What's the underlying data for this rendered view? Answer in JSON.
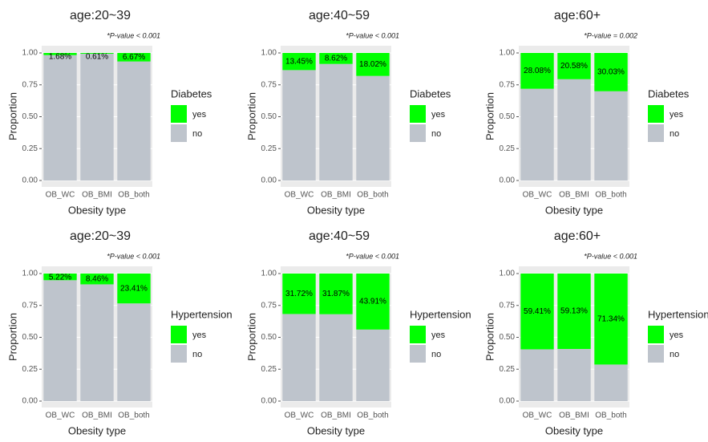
{
  "chart_data": [
    {
      "type": "stacked_bar",
      "title": "age:20~39",
      "subtitle": "*P-value < 0.001",
      "x_label": "Obesity type",
      "y_label": "Proportion",
      "legend_title": "Diabetes",
      "categories": [
        "OB_WC",
        "OB_BMI",
        "OB_both"
      ],
      "series": [
        {
          "name": "yes",
          "color": "#00ff00",
          "values": [
            0.0168,
            0.0061,
            0.0667
          ],
          "value_labels": [
            "1.68%",
            "0.61%",
            "6.67%"
          ]
        },
        {
          "name": "no",
          "color": "#bec4cc",
          "values": [
            0.9832,
            0.9939,
            0.9333
          ]
        }
      ],
      "ylim": [
        0,
        1
      ],
      "yticks": [
        {
          "value": 0,
          "label": "0.00"
        },
        {
          "value": 0.25,
          "label": "0.25"
        },
        {
          "value": 0.5,
          "label": "0.50"
        },
        {
          "value": 0.75,
          "label": "0.75"
        },
        {
          "value": 1,
          "label": "1.00"
        }
      ],
      "grid": true
    },
    {
      "type": "stacked_bar",
      "title": "age:40~59",
      "subtitle": "*P-value < 0.001",
      "x_label": "Obesity type",
      "y_label": "Proportion",
      "legend_title": "Diabetes",
      "categories": [
        "OB_WC",
        "OB_BMI",
        "OB_both"
      ],
      "series": [
        {
          "name": "yes",
          "color": "#00ff00",
          "values": [
            0.1345,
            0.0862,
            0.1802
          ],
          "value_labels": [
            "13.45%",
            "8.62%",
            "18.02%"
          ]
        },
        {
          "name": "no",
          "color": "#bec4cc",
          "values": [
            0.8655,
            0.9138,
            0.8198
          ]
        }
      ],
      "ylim": [
        0,
        1
      ],
      "yticks": [
        {
          "value": 0,
          "label": "0.00"
        },
        {
          "value": 0.25,
          "label": "0.25"
        },
        {
          "value": 0.5,
          "label": "0.50"
        },
        {
          "value": 0.75,
          "label": "0.75"
        },
        {
          "value": 1,
          "label": "1.00"
        }
      ],
      "grid": true
    },
    {
      "type": "stacked_bar",
      "title": "age:60+",
      "subtitle": "*P-value = 0.002",
      "x_label": "Obesity type",
      "y_label": "Proportion",
      "legend_title": "Diabetes",
      "categories": [
        "OB_WC",
        "OB_BMI",
        "OB_both"
      ],
      "series": [
        {
          "name": "yes",
          "color": "#00ff00",
          "values": [
            0.2808,
            0.2058,
            0.3003
          ],
          "value_labels": [
            "28.08%",
            "20.58%",
            "30.03%"
          ]
        },
        {
          "name": "no",
          "color": "#bec4cc",
          "values": [
            0.7192,
            0.7942,
            0.6997
          ]
        }
      ],
      "ylim": [
        0,
        1
      ],
      "yticks": [
        {
          "value": 0,
          "label": "0.00"
        },
        {
          "value": 0.25,
          "label": "0.25"
        },
        {
          "value": 0.5,
          "label": "0.50"
        },
        {
          "value": 0.75,
          "label": "0.75"
        },
        {
          "value": 1,
          "label": "1.00"
        }
      ],
      "grid": true
    },
    {
      "type": "stacked_bar",
      "title": "age:20~39",
      "subtitle": "*P-value < 0.001",
      "x_label": "Obesity type",
      "y_label": "Proportion",
      "legend_title": "Hypertension",
      "categories": [
        "OB_WC",
        "OB_BMI",
        "OB_both"
      ],
      "series": [
        {
          "name": "yes",
          "color": "#00ff00",
          "values": [
            0.0522,
            0.0846,
            0.2341
          ],
          "value_labels": [
            "5.22%",
            "8.46%",
            "23.41%"
          ]
        },
        {
          "name": "no",
          "color": "#bec4cc",
          "values": [
            0.9478,
            0.9154,
            0.7659
          ]
        }
      ],
      "ylim": [
        0,
        1
      ],
      "yticks": [
        {
          "value": 0,
          "label": "0.00"
        },
        {
          "value": 0.25,
          "label": "0.25"
        },
        {
          "value": 0.5,
          "label": "0.50"
        },
        {
          "value": 0.75,
          "label": "0.75"
        },
        {
          "value": 1,
          "label": "1.00"
        }
      ],
      "grid": true
    },
    {
      "type": "stacked_bar",
      "title": "age:40~59",
      "subtitle": "*P-value < 0.001",
      "x_label": "Obesity type",
      "y_label": "Proportion",
      "legend_title": "Hypertension",
      "categories": [
        "OB_WC",
        "OB_BMI",
        "OB_both"
      ],
      "series": [
        {
          "name": "yes",
          "color": "#00ff00",
          "values": [
            0.3172,
            0.3187,
            0.4391
          ],
          "value_labels": [
            "31.72%",
            "31.87%",
            "43.91%"
          ]
        },
        {
          "name": "no",
          "color": "#bec4cc",
          "values": [
            0.6828,
            0.6813,
            0.5609
          ]
        }
      ],
      "ylim": [
        0,
        1
      ],
      "yticks": [
        {
          "value": 0,
          "label": "0.00"
        },
        {
          "value": 0.25,
          "label": "0.25"
        },
        {
          "value": 0.5,
          "label": "0.50"
        },
        {
          "value": 0.75,
          "label": "0.75"
        },
        {
          "value": 1,
          "label": "1.00"
        }
      ],
      "grid": true
    },
    {
      "type": "stacked_bar",
      "title": "age:60+",
      "subtitle": "*P-value < 0.001",
      "x_label": "Obesity type",
      "y_label": "Proportion",
      "legend_title": "Hypertension",
      "categories": [
        "OB_WC",
        "OB_BMI",
        "OB_both"
      ],
      "series": [
        {
          "name": "yes",
          "color": "#00ff00",
          "values": [
            0.5941,
            0.5913,
            0.7134
          ],
          "value_labels": [
            "59.41%",
            "59.13%",
            "71.34%"
          ]
        },
        {
          "name": "no",
          "color": "#bec4cc",
          "values": [
            0.4059,
            0.4087,
            0.2866
          ]
        }
      ],
      "ylim": [
        0,
        1
      ],
      "yticks": [
        {
          "value": 0,
          "label": "0.00"
        },
        {
          "value": 0.25,
          "label": "0.25"
        },
        {
          "value": 0.5,
          "label": "0.50"
        },
        {
          "value": 0.75,
          "label": "0.75"
        },
        {
          "value": 1,
          "label": "1.00"
        }
      ],
      "grid": true
    }
  ]
}
